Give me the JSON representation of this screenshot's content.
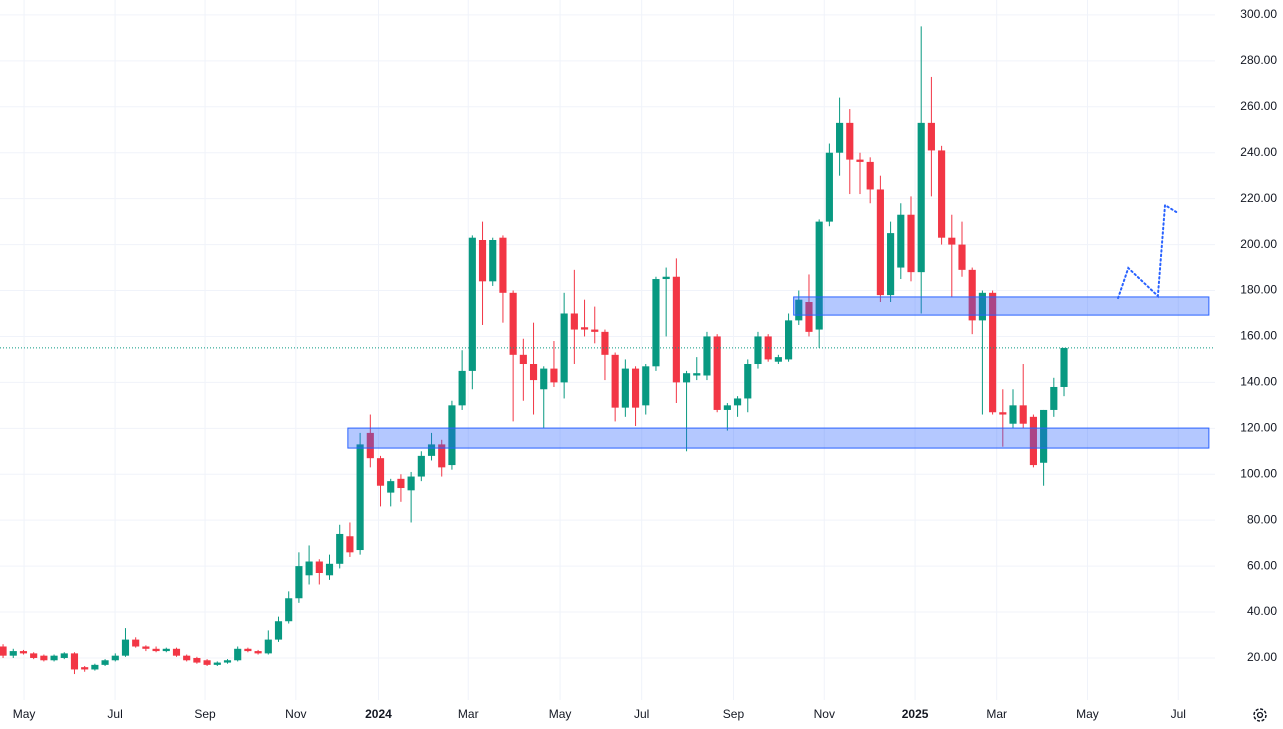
{
  "chart_data": {
    "type": "candlestick",
    "up_color": "#089981",
    "down_color": "#f23645",
    "grid": true,
    "xlim": [
      -0.3,
      118.8
    ],
    "ylim": [
      1.7,
      306.5
    ],
    "xticks": [
      {
        "value": 2.06,
        "label": "May"
      },
      {
        "value": 10.98,
        "label": "Jul"
      },
      {
        "value": 19.8,
        "label": "Sep"
      },
      {
        "value": 28.7,
        "label": "Nov"
      },
      {
        "value": 36.8,
        "label": "2024"
      },
      {
        "value": 45.6,
        "label": "Mar"
      },
      {
        "value": 54.6,
        "label": "May"
      },
      {
        "value": 62.6,
        "label": "Jul"
      },
      {
        "value": 71.6,
        "label": "Sep"
      },
      {
        "value": 80.5,
        "label": "Nov"
      },
      {
        "value": 89.4,
        "label": "2025"
      },
      {
        "value": 97.4,
        "label": "Mar"
      },
      {
        "value": 106.3,
        "label": "May"
      },
      {
        "value": 115.2,
        "label": "Jul"
      }
    ],
    "yticks": [
      {
        "value": 20,
        "label": "20.00"
      },
      {
        "value": 40,
        "label": "40.00"
      },
      {
        "value": 60,
        "label": "60.00"
      },
      {
        "value": 80,
        "label": "80.00"
      },
      {
        "value": 100,
        "label": "100.00"
      },
      {
        "value": 120,
        "label": "120.00"
      },
      {
        "value": 140,
        "label": "140.00"
      },
      {
        "value": 160,
        "label": "160.00"
      },
      {
        "value": 180,
        "label": "180.00"
      },
      {
        "value": 200,
        "label": "200.00"
      },
      {
        "value": 220,
        "label": "220.00"
      },
      {
        "value": 240,
        "label": "240.00"
      },
      {
        "value": 260,
        "label": "260.00"
      },
      {
        "value": 280,
        "label": "280.00"
      },
      {
        "value": 300,
        "label": "300.00"
      }
    ],
    "ohlc": [
      [
        25,
        26,
        20,
        21
      ],
      [
        21,
        24,
        20,
        23
      ],
      [
        23,
        23.5,
        21.5,
        22
      ],
      [
        22,
        22.5,
        19.5,
        20
      ],
      [
        21,
        21.5,
        18.5,
        19
      ],
      [
        19,
        21.5,
        18.5,
        21
      ],
      [
        20,
        22.5,
        19.5,
        22
      ],
      [
        22,
        22.5,
        13,
        15
      ],
      [
        16,
        16.5,
        14,
        15
      ],
      [
        15,
        17.5,
        14.5,
        17
      ],
      [
        17,
        19.5,
        16.5,
        19
      ],
      [
        19,
        22,
        18.5,
        21
      ],
      [
        21,
        33,
        20.5,
        28
      ],
      [
        28,
        29,
        24.5,
        25
      ],
      [
        25,
        25.5,
        23,
        24
      ],
      [
        24,
        25,
        22.5,
        23
      ],
      [
        23,
        24.5,
        22.5,
        24
      ],
      [
        24,
        24.5,
        20.5,
        21
      ],
      [
        21,
        21.5,
        18.5,
        19
      ],
      [
        20,
        20.5,
        17.5,
        18
      ],
      [
        19,
        19.5,
        16.5,
        17
      ],
      [
        17,
        18.5,
        16.5,
        18
      ],
      [
        18,
        19.5,
        17.5,
        19
      ],
      [
        19,
        25,
        18.5,
        24
      ],
      [
        24,
        24.5,
        22.5,
        23
      ],
      [
        23,
        23.5,
        21.5,
        22
      ],
      [
        22,
        32,
        21.5,
        28
      ],
      [
        28,
        38,
        27,
        36
      ],
      [
        36,
        49,
        35,
        46
      ],
      [
        46,
        66,
        44,
        60
      ],
      [
        56,
        69,
        52,
        62
      ],
      [
        62,
        63,
        52,
        57
      ],
      [
        56,
        65,
        54,
        61
      ],
      [
        61,
        78,
        59,
        74
      ],
      [
        73,
        79,
        64,
        66
      ],
      [
        67,
        118,
        65,
        113
      ],
      [
        118,
        126,
        103,
        107
      ],
      [
        107,
        108,
        86,
        95
      ],
      [
        92,
        98,
        86,
        97
      ],
      [
        98,
        100,
        88,
        94
      ],
      [
        93,
        101,
        79,
        99
      ],
      [
        99,
        110,
        97,
        108
      ],
      [
        108,
        118,
        106,
        113
      ],
      [
        113,
        115,
        99,
        103
      ],
      [
        104,
        132,
        102,
        130
      ],
      [
        130,
        154,
        128,
        145
      ],
      [
        145,
        204,
        137,
        203
      ],
      [
        202,
        210,
        165,
        184
      ],
      [
        184,
        203,
        182,
        202
      ],
      [
        203,
        204,
        166,
        179
      ],
      [
        179,
        180,
        123,
        152
      ],
      [
        152,
        159,
        132,
        148
      ],
      [
        148,
        166,
        126,
        141
      ],
      [
        137,
        147,
        120,
        146
      ],
      [
        146,
        158,
        138,
        140
      ],
      [
        140,
        179,
        133,
        170
      ],
      [
        170,
        189,
        148,
        163
      ],
      [
        164,
        176,
        160,
        163
      ],
      [
        163,
        173,
        157,
        162
      ],
      [
        162,
        163,
        141,
        152
      ],
      [
        152,
        153,
        123,
        129
      ],
      [
        129,
        150,
        125,
        146
      ],
      [
        146,
        147,
        121,
        129
      ],
      [
        130,
        148,
        126,
        147
      ],
      [
        147,
        186,
        145,
        185
      ],
      [
        185,
        190,
        160,
        186
      ],
      [
        186,
        194,
        131,
        140
      ],
      [
        140,
        145,
        110,
        144
      ],
      [
        143,
        151,
        141,
        144
      ],
      [
        143,
        162,
        141,
        160
      ],
      [
        160,
        161,
        127,
        128
      ],
      [
        128,
        131,
        119,
        130
      ],
      [
        130,
        134,
        125,
        133
      ],
      [
        133,
        150,
        127,
        148
      ],
      [
        148,
        162,
        146,
        160
      ],
      [
        160,
        161,
        149,
        150
      ],
      [
        149,
        152,
        148,
        151
      ],
      [
        150,
        170,
        149,
        167
      ],
      [
        167,
        180,
        165,
        176
      ],
      [
        175,
        187,
        160,
        162
      ],
      [
        163,
        211,
        155,
        210
      ],
      [
        210,
        244,
        208,
        240
      ],
      [
        240,
        264,
        230,
        253
      ],
      [
        253,
        259,
        222,
        237
      ],
      [
        237,
        240,
        222,
        236
      ],
      [
        236,
        238,
        218,
        224
      ],
      [
        224,
        230,
        175,
        178
      ],
      [
        178,
        210,
        175,
        205
      ],
      [
        190,
        218,
        185,
        213
      ],
      [
        213,
        221,
        184,
        188
      ],
      [
        188,
        295,
        170,
        253
      ],
      [
        253,
        273,
        221,
        241
      ],
      [
        241,
        243,
        200,
        203
      ],
      [
        203,
        213,
        177,
        200
      ],
      [
        200,
        210,
        186,
        189
      ],
      [
        189,
        190,
        161,
        167
      ],
      [
        167,
        180,
        126,
        179
      ],
      [
        179,
        180,
        126,
        127
      ],
      [
        127,
        137,
        112,
        126
      ],
      [
        122,
        137,
        120,
        130
      ],
      [
        130,
        148,
        120,
        122
      ],
      [
        125,
        126,
        103,
        104
      ],
      [
        105,
        128,
        95,
        128
      ],
      [
        128,
        142,
        125,
        138
      ],
      [
        138,
        155,
        134,
        155
      ]
    ],
    "zones": [
      {
        "x": [
          33.8,
          118.2
        ],
        "y": [
          111.4,
          120.1
        ],
        "color": "#2962ff"
      },
      {
        "x": [
          77.5,
          118.2
        ],
        "y": [
          169.3,
          177.2
        ],
        "color": "#2962ff"
      }
    ],
    "projection": {
      "x": [
        109.3,
        110.3,
        113.2,
        113.9,
        115.0
      ],
      "values": [
        176.7,
        189.8,
        177.6,
        217.2,
        214.2
      ],
      "color": "#2962ff"
    }
  }
}
